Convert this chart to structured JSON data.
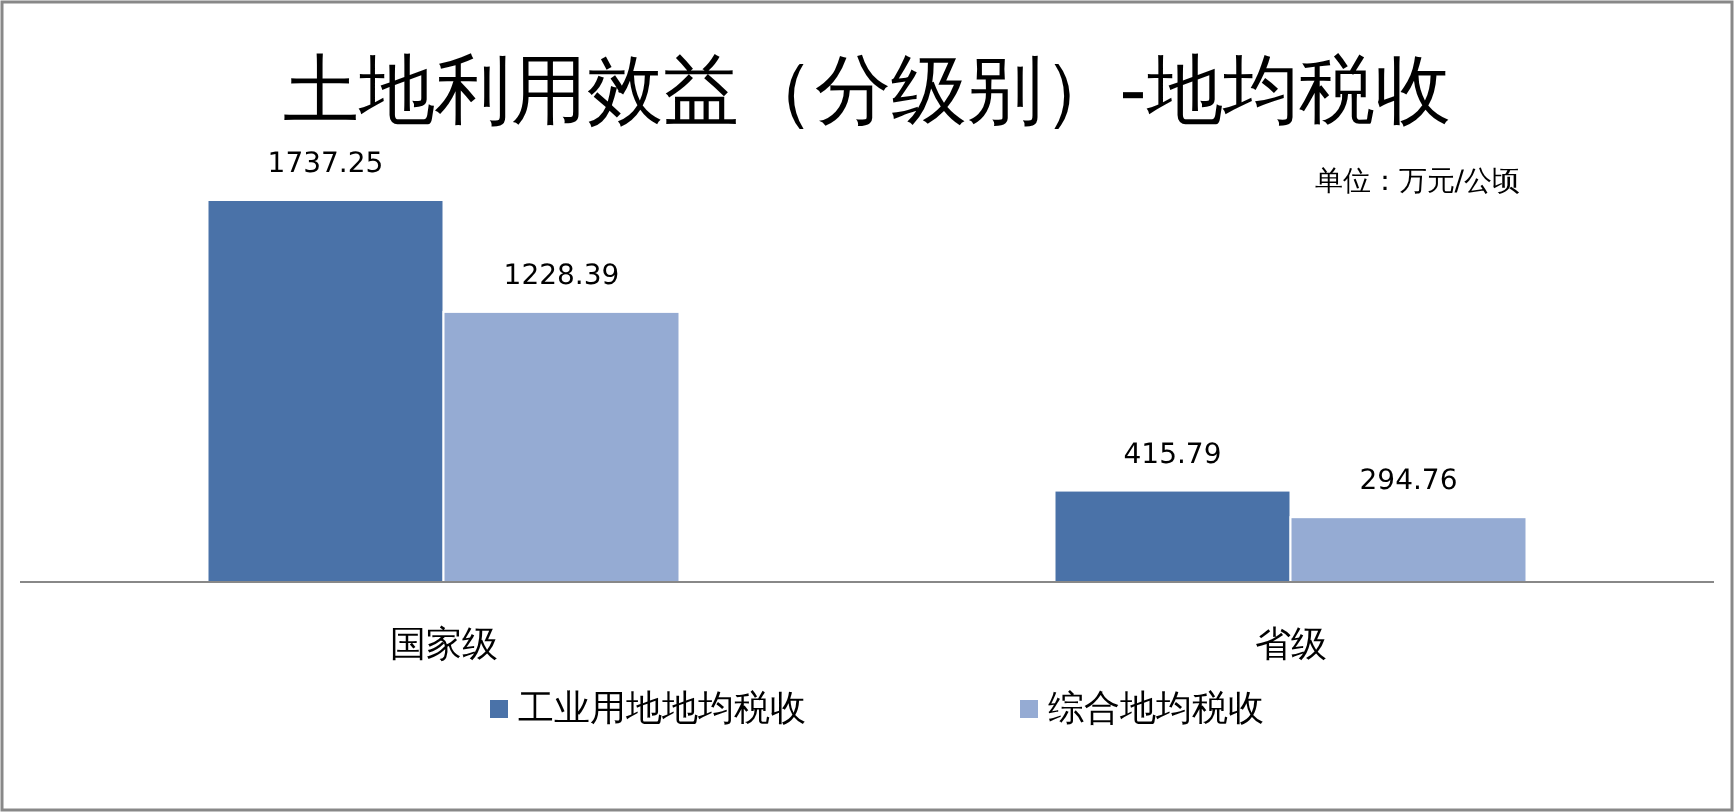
{
  "chart_data": {
    "type": "bar",
    "title": "土地利用效益（分级别）-地均税收",
    "annotations": [
      "单位：万元/公顷"
    ],
    "categories": [
      "国家级",
      "省级"
    ],
    "series": [
      {
        "name": "工业用地地均税收",
        "color": "#4a72a8",
        "values": [
          1737.25,
          415.79
        ]
      },
      {
        "name": "综合地均税收",
        "color": "#95abd3",
        "values": [
          1228.39,
          294.76
        ]
      }
    ],
    "data_labels": true,
    "legend": "bottom",
    "grid": false
  }
}
